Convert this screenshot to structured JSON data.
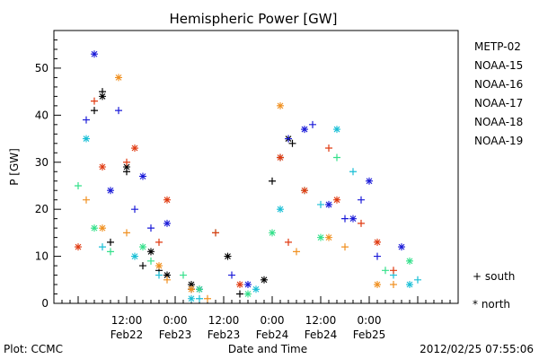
{
  "chart_data": {
    "type": "scatter",
    "title": "Hemispheric Power [GW]",
    "xlabel": "Date and Time",
    "ylabel": "P [GW]",
    "ylim": [
      0,
      58
    ],
    "xlim": [
      "2012-02-21 18:00",
      "2012-02-25 22:00"
    ],
    "y_ticks": [
      0,
      10,
      20,
      30,
      40,
      50
    ],
    "x_ticks": [
      {
        "t": "2012-02-22 12:00",
        "time": "12:00",
        "date": "Feb22"
      },
      {
        "t": "2012-02-23 00:00",
        "time": "0:00",
        "date": "Feb23"
      },
      {
        "t": "2012-02-23 12:00",
        "time": "12:00",
        "date": "Feb23"
      },
      {
        "t": "2012-02-24 00:00",
        "time": "0:00",
        "date": "Feb24"
      },
      {
        "t": "2012-02-24 12:00",
        "time": "12:00",
        "date": "Feb24"
      },
      {
        "t": "2012-02-25 00:00",
        "time": "0:00",
        "date": "Feb25"
      }
    ],
    "legend_position": "right",
    "marker_legend": {
      "south": "+ south",
      "north": "* north"
    },
    "series": [
      {
        "name": "METP-02",
        "color": "#000000",
        "south": [
          [
            "2012-02-22 04:00",
            41
          ],
          [
            "2012-02-22 06:00",
            45
          ],
          [
            "2012-02-22 08:00",
            13
          ],
          [
            "2012-02-22 12:00",
            28
          ],
          [
            "2012-02-22 16:00",
            8
          ],
          [
            "2012-02-22 20:00",
            7
          ],
          [
            "2012-02-23 04:00",
            3
          ],
          [
            "2012-02-23 16:00",
            2
          ],
          [
            "2012-02-24 00:00",
            26
          ],
          [
            "2012-02-24 02:00",
            31
          ],
          [
            "2012-02-24 05:00",
            34
          ]
        ],
        "north": [
          [
            "2012-02-22 06:00",
            44
          ],
          [
            "2012-02-22 12:00",
            29
          ],
          [
            "2012-02-22 18:00",
            11
          ],
          [
            "2012-02-22 22:00",
            6
          ],
          [
            "2012-02-23 04:00",
            4
          ],
          [
            "2012-02-23 13:00",
            10
          ],
          [
            "2012-02-23 22:00",
            5
          ],
          [
            "2012-02-24 04:00",
            35
          ]
        ]
      },
      {
        "name": "NOAA-15",
        "color": "#1a1ad8",
        "south": [
          [
            "2012-02-22 02:00",
            39
          ],
          [
            "2012-02-22 10:00",
            41
          ],
          [
            "2012-02-22 14:00",
            20
          ],
          [
            "2012-02-22 18:00",
            16
          ],
          [
            "2012-02-23 14:00",
            6
          ],
          [
            "2012-02-24 04:00",
            35
          ],
          [
            "2012-02-24 10:00",
            38
          ],
          [
            "2012-02-24 18:00",
            18
          ],
          [
            "2012-02-24 22:00",
            22
          ],
          [
            "2012-02-25 02:00",
            10
          ]
        ],
        "north": [
          [
            "2012-02-22 04:00",
            53
          ],
          [
            "2012-02-22 08:00",
            24
          ],
          [
            "2012-02-22 16:00",
            27
          ],
          [
            "2012-02-22 22:00",
            17
          ],
          [
            "2012-02-23 06:00",
            3
          ],
          [
            "2012-02-23 18:00",
            4
          ],
          [
            "2012-02-24 08:00",
            37
          ],
          [
            "2012-02-24 14:00",
            21
          ],
          [
            "2012-02-24 20:00",
            18
          ],
          [
            "2012-02-25 00:00",
            26
          ],
          [
            "2012-02-25 08:00",
            12
          ]
        ]
      },
      {
        "name": "NOAA-16",
        "color": "#19bfd6",
        "south": [
          [
            "2012-02-22 06:00",
            12
          ],
          [
            "2012-02-22 20:00",
            6
          ],
          [
            "2012-02-23 06:00",
            1
          ],
          [
            "2012-02-24 12:00",
            21
          ],
          [
            "2012-02-24 20:00",
            28
          ],
          [
            "2012-02-25 06:00",
            6
          ],
          [
            "2012-02-25 12:00",
            5
          ]
        ],
        "north": [
          [
            "2012-02-22 02:00",
            35
          ],
          [
            "2012-02-22 14:00",
            10
          ],
          [
            "2012-02-23 04:00",
            1
          ],
          [
            "2012-02-23 20:00",
            3
          ],
          [
            "2012-02-24 02:00",
            20
          ],
          [
            "2012-02-24 16:00",
            37
          ],
          [
            "2012-02-25 10:00",
            4
          ]
        ]
      },
      {
        "name": "NOAA-17",
        "color": "#33e08a",
        "south": [
          [
            "2012-02-22 00:00",
            25
          ],
          [
            "2012-02-22 08:00",
            11
          ],
          [
            "2012-02-22 18:00",
            9
          ],
          [
            "2012-02-23 02:00",
            6
          ],
          [
            "2012-02-23 10:00",
            15
          ],
          [
            "2012-02-24 08:00",
            24
          ],
          [
            "2012-02-24 16:00",
            31
          ],
          [
            "2012-02-25 04:00",
            7
          ]
        ],
        "north": [
          [
            "2012-02-22 04:00",
            16
          ],
          [
            "2012-02-22 16:00",
            12
          ],
          [
            "2012-02-23 06:00",
            3
          ],
          [
            "2012-02-23 18:00",
            2
          ],
          [
            "2012-02-24 00:00",
            15
          ],
          [
            "2012-02-24 12:00",
            14
          ],
          [
            "2012-02-25 10:00",
            9
          ]
        ]
      },
      {
        "name": "NOAA-18",
        "color": "#f09020",
        "south": [
          [
            "2012-02-22 02:00",
            22
          ],
          [
            "2012-02-22 12:00",
            15
          ],
          [
            "2012-02-22 22:00",
            5
          ],
          [
            "2012-02-23 08:00",
            1
          ],
          [
            "2012-02-24 06:00",
            11
          ],
          [
            "2012-02-24 18:00",
            12
          ],
          [
            "2012-02-25 06:00",
            4
          ]
        ],
        "north": [
          [
            "2012-02-22 06:00",
            16
          ],
          [
            "2012-02-22 10:00",
            48
          ],
          [
            "2012-02-22 20:00",
            8
          ],
          [
            "2012-02-23 04:00",
            3
          ],
          [
            "2012-02-24 02:00",
            42
          ],
          [
            "2012-02-24 14:00",
            14
          ],
          [
            "2012-02-25 02:00",
            4
          ]
        ]
      },
      {
        "name": "NOAA-19",
        "color": "#e03a10",
        "south": [
          [
            "2012-02-22 04:00",
            43
          ],
          [
            "2012-02-22 12:00",
            30
          ],
          [
            "2012-02-22 20:00",
            13
          ],
          [
            "2012-02-23 10:00",
            15
          ],
          [
            "2012-02-24 04:00",
            13
          ],
          [
            "2012-02-24 14:00",
            33
          ],
          [
            "2012-02-24 22:00",
            17
          ],
          [
            "2012-02-25 06:00",
            7
          ]
        ],
        "north": [
          [
            "2012-02-22 00:00",
            12
          ],
          [
            "2012-02-22 06:00",
            29
          ],
          [
            "2012-02-22 14:00",
            33
          ],
          [
            "2012-02-22 22:00",
            22
          ],
          [
            "2012-02-23 16:00",
            4
          ],
          [
            "2012-02-24 02:00",
            31
          ],
          [
            "2012-02-24 08:00",
            24
          ],
          [
            "2012-02-24 16:00",
            22
          ],
          [
            "2012-02-25 02:00",
            13
          ]
        ]
      }
    ]
  },
  "footer": {
    "plot_credit": "Plot: CCMC",
    "timestamp": "2012/02/25 07:55:06"
  }
}
